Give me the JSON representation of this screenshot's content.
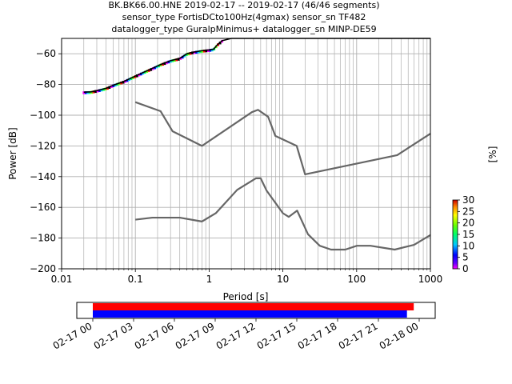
{
  "chart_data": {
    "type": "line",
    "title": [
      "BK.BK66.00.HNE   2019-02-17 -- 2019-02-17  (46/46 segments)",
      "sensor_type FortisDCto100Hz(4gmax) sensor_sn TF482",
      "datalogger_type GuralpMinimus+ datalogger_sn MINP-DE59"
    ],
    "xlabel": "Period [s]",
    "ylabel": "Power [dB]",
    "xscale": "log",
    "xlim": [
      0.01,
      1000
    ],
    "ylim": [
      -200,
      -50
    ],
    "grid": true,
    "x_ticks": [
      0.01,
      0.1,
      1,
      10,
      100,
      1000
    ],
    "x_tick_labels": [
      "0.01",
      "0.1",
      "1",
      "10",
      "100",
      "1000"
    ],
    "y_ticks": [
      -200,
      -180,
      -160,
      -140,
      -120,
      -100,
      -80,
      -60
    ],
    "y_tick_labels": [
      "−200",
      "−180",
      "−160",
      "−140",
      "−120",
      "−100",
      "−80",
      "−60"
    ],
    "series": [
      {
        "role": "new-high-noise-model",
        "color": "#666666",
        "x": [
          0.1,
          0.22,
          0.32,
          0.8,
          3.8,
          4.6,
          6.3,
          7.9,
          15.4,
          20,
          354.8,
          1000
        ],
        "y": [
          -91.5,
          -97.4,
          -110.5,
          -120,
          -98,
          -96.5,
          -101,
          -113.5,
          -120,
          -138.5,
          -126,
          -112
        ]
      },
      {
        "role": "new-low-noise-model",
        "color": "#666666",
        "x": [
          0.1,
          0.17,
          0.4,
          0.8,
          1.24,
          2.4,
          4.3,
          5,
          6,
          10,
          12,
          15.6,
          21.9,
          31.6,
          45,
          70,
          101,
          154,
          328,
          600,
          1000
        ],
        "y": [
          -168,
          -166.7,
          -166.7,
          -169.2,
          -163.7,
          -148.6,
          -141.1,
          -141.1,
          -149,
          -163.8,
          -166.2,
          -162.1,
          -177.5,
          -185,
          -187.5,
          -187.5,
          -185,
          -185,
          -187.5,
          -184.4,
          -178
        ]
      },
      {
        "role": "psd-mode",
        "color": "#000000",
        "x": [
          0.02,
          0.025,
          0.03,
          0.04,
          0.05,
          0.07,
          0.1,
          0.13,
          0.17,
          0.22,
          0.3,
          0.4,
          0.5,
          0.6,
          0.8,
          1.0,
          1.15,
          1.3,
          1.5,
          2,
          5,
          10,
          100,
          1000
        ],
        "y": [
          -85,
          -84.8,
          -84,
          -82.5,
          -80.5,
          -78,
          -74.5,
          -72,
          -69.5,
          -67,
          -64.5,
          -63,
          -60,
          -59,
          -58,
          -57.5,
          -57,
          -54,
          -51.5,
          -50,
          -50,
          -50,
          -50,
          -50
        ]
      }
    ],
    "colorbar": {
      "label": "[%]",
      "min": 0,
      "max": 30,
      "ticks": [
        0,
        5,
        10,
        15,
        20,
        25,
        30
      ],
      "tick_labels": [
        "0",
        "5",
        "10",
        "15",
        "20",
        "25",
        "30"
      ]
    },
    "data_availability": {
      "time_ticks": [
        "02-17 00",
        "02-17 03",
        "02-17 06",
        "02-17 09",
        "02-17 12",
        "02-17 15",
        "02-17 18",
        "02-17 21",
        "02-18 00"
      ],
      "bars": [
        {
          "role": "segments-used",
          "color": "#ff0000",
          "start_hour": 0.0,
          "end_hour": 23.6
        },
        {
          "role": "segments-available",
          "color": "#0000ff",
          "start_hour": 0.0,
          "end_hour": 23.1
        }
      ]
    }
  }
}
